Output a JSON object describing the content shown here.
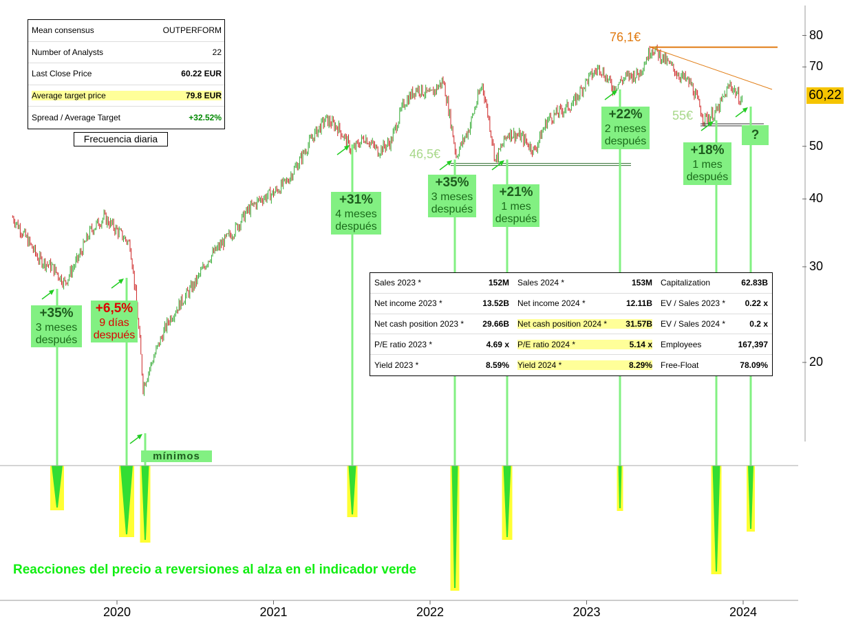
{
  "consensus": {
    "rows": [
      {
        "label": "Mean consensus",
        "value": "OUTPERFORM"
      },
      {
        "label": "Number of Analysts",
        "value": "22"
      },
      {
        "label": "Last Close Price",
        "value": "60.22 EUR"
      },
      {
        "label": "Average target price",
        "value": "79.8 EUR"
      },
      {
        "label": "Spread / Average Target",
        "value": "+32.52%"
      }
    ],
    "frequency": "Frecuencia diaria"
  },
  "fundamentals": {
    "col1": [
      {
        "label": "Sales 2023 *",
        "value": "152M"
      },
      {
        "label": "Net income 2023 *",
        "value": "13.52B"
      },
      {
        "label": "Net cash position 2023 *",
        "value": "29.66B"
      },
      {
        "label": "P/E ratio 2023 *",
        "value": "4.69 x"
      },
      {
        "label": "Yield 2023 *",
        "value": "8.59%"
      }
    ],
    "col2": [
      {
        "label": "Sales 2024 *",
        "value": "153M"
      },
      {
        "label": "Net income 2024 *",
        "value": "12.11B"
      },
      {
        "label": "Net cash position 2024 *",
        "value": "31.57B"
      },
      {
        "label": "P/E ratio 2024 *",
        "value": "5.14 x"
      },
      {
        "label": "Yield 2024 *",
        "value": "8.29%"
      }
    ],
    "col3": [
      {
        "label": "Capitalization",
        "value": "62.83B"
      },
      {
        "label": "EV / Sales 2023 *",
        "value": "0.22 x"
      },
      {
        "label": "EV / Sales 2024 *",
        "value": "0.2 x"
      },
      {
        "label": "Employees",
        "value": "167,397"
      },
      {
        "label": "Free-Float",
        "value": "78.09%"
      }
    ]
  },
  "annotations": {
    "minimos": "mínimos",
    "caption": "Reacciones del precio a reversiones al alza en el indicador verde",
    "level_761": "76,1€",
    "level_465": "46,5€",
    "level_55": "55€",
    "last_price": "60,22",
    "reactions": [
      {
        "pct": "+35%",
        "l1": "3 meses",
        "l2": "después",
        "color": "green"
      },
      {
        "pct": "+6,5%",
        "l1": "9 días",
        "l2": "después",
        "color": "red"
      },
      {
        "pct": "+31%",
        "l1": "4 meses",
        "l2": "después",
        "color": "green"
      },
      {
        "pct": "+35%",
        "l1": "3 meses",
        "l2": "después",
        "color": "green"
      },
      {
        "pct": "+21%",
        "l1": "1 mes",
        "l2": "después",
        "color": "green"
      },
      {
        "pct": "+22%",
        "l1": "2 meses",
        "l2": "después",
        "color": "green"
      },
      {
        "pct": "+18%",
        "l1": "1 mes",
        "l2": "después",
        "color": "green"
      },
      {
        "pct": "?",
        "l1": "",
        "l2": "",
        "color": "green"
      }
    ]
  },
  "colors": {
    "up_candle": "#33aa33",
    "down_candle": "#cc2222",
    "signal_green": "#82f082",
    "signal_yellow": "#ffff33",
    "resistance": "#e07a10",
    "support": "#2d6b2d"
  },
  "chart_data": {
    "type": "line",
    "scale": "log",
    "ylim": [
      14,
      85
    ],
    "y_ticks": [
      20,
      30,
      40,
      50,
      70,
      80
    ],
    "y_tick_labels": [
      "20",
      "30",
      "40",
      "50",
      "70",
      "80"
    ],
    "x_ticks": [
      "2020",
      "2021",
      "2022",
      "2023",
      "2024"
    ],
    "series": [
      {
        "x": [
          "2019-05",
          "2019-06",
          "2019-07",
          "2019-08",
          "2019-09",
          "2019-10",
          "2019-11",
          "2019-12",
          "2020-01",
          "2020-02",
          "2020-03",
          "2020-04",
          "2020-05",
          "2020-06",
          "2020-07",
          "2020-08",
          "2020-09",
          "2020-10",
          "2020-11",
          "2020-12",
          "2021-01",
          "2021-02",
          "2021-03",
          "2021-04",
          "2021-05",
          "2021-06",
          "2021-07",
          "2021-08",
          "2021-09",
          "2021-10",
          "2021-11",
          "2021-12",
          "2022-01",
          "2022-02",
          "2022-03",
          "2022-04",
          "2022-05",
          "2022-06",
          "2022-07",
          "2022-08",
          "2022-09",
          "2022-10",
          "2022-11",
          "2022-12",
          "2023-01",
          "2023-02",
          "2023-03",
          "2023-04",
          "2023-05",
          "2023-06",
          "2023-07",
          "2023-08",
          "2023-09",
          "2023-10",
          "2023-11",
          "2023-12",
          "2024-01"
        ],
        "values": [
          37,
          34,
          31,
          30,
          28,
          31,
          35,
          37,
          35,
          33,
          18,
          21,
          24,
          26,
          28,
          31,
          33,
          35,
          38,
          40,
          41,
          43,
          47,
          52,
          56,
          54,
          49,
          52,
          49,
          51,
          60,
          64,
          62,
          66,
          48,
          54,
          65,
          47,
          53,
          52,
          49,
          56,
          58,
          60,
          66,
          70,
          64,
          67,
          68,
          76,
          72,
          68,
          65,
          56,
          58,
          65,
          60
        ]
      }
    ],
    "signals": [
      {
        "date": "2019-08",
        "result": "+35%",
        "after": "3 meses después"
      },
      {
        "date": "2020-02",
        "result": "+6,5%",
        "after": "9 días después"
      },
      {
        "date": "2020-03",
        "result": "mínimos"
      },
      {
        "date": "2021-07",
        "result": "+31%",
        "after": "4 meses después"
      },
      {
        "date": "2022-03",
        "result": "+35%",
        "after": "3 meses después"
      },
      {
        "date": "2022-07",
        "result": "+21%",
        "after": "1 mes después"
      },
      {
        "date": "2023-03",
        "result": "+22%",
        "after": "2 meses después"
      },
      {
        "date": "2023-10",
        "result": "+18%",
        "after": "1 mes después"
      },
      {
        "date": "2024-01",
        "result": "?"
      }
    ],
    "levels": [
      {
        "label": "76,1€",
        "value": 76.1
      },
      {
        "label": "46,5€",
        "value": 46.5
      },
      {
        "label": "55€",
        "value": 55
      }
    ],
    "last_value": 60.22
  }
}
